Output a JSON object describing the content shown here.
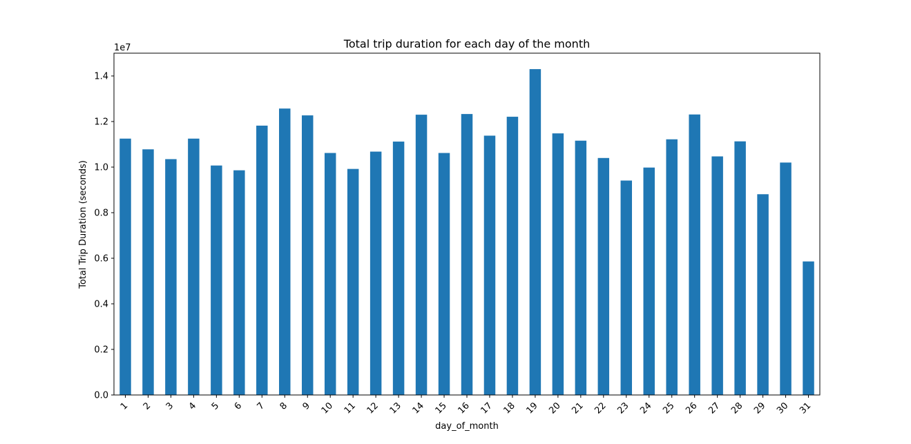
{
  "chart_data": {
    "type": "bar",
    "title": "Total trip duration for each day of the month",
    "xlabel": "day_of_month",
    "ylabel": "Total Trip Duration (seconds)",
    "y_offset_label": "1e7",
    "y_scale_factor": 10000000,
    "ylim": [
      0,
      15000000
    ],
    "yticks": [
      0,
      2000000,
      4000000,
      6000000,
      8000000,
      10000000,
      12000000,
      14000000
    ],
    "ytick_labels": [
      "0.0",
      "0.2",
      "0.4",
      "0.6",
      "0.8",
      "1.0",
      "1.2",
      "1.4"
    ],
    "categories": [
      "1",
      "2",
      "3",
      "4",
      "5",
      "6",
      "7",
      "8",
      "9",
      "10",
      "11",
      "12",
      "13",
      "14",
      "15",
      "16",
      "17",
      "18",
      "19",
      "20",
      "21",
      "22",
      "23",
      "24",
      "25",
      "26",
      "27",
      "28",
      "29",
      "30",
      "31"
    ],
    "values": [
      11250000,
      10780000,
      10350000,
      11250000,
      10070000,
      9860000,
      11820000,
      12570000,
      12270000,
      10620000,
      9920000,
      10680000,
      11120000,
      12300000,
      10620000,
      12330000,
      11380000,
      12210000,
      14300000,
      11480000,
      11160000,
      10400000,
      9410000,
      9980000,
      11220000,
      12310000,
      10470000,
      11130000,
      8810000,
      10200000,
      5860000
    ],
    "bar_color": "#1f77b4",
    "grid": false,
    "legend": false
  }
}
